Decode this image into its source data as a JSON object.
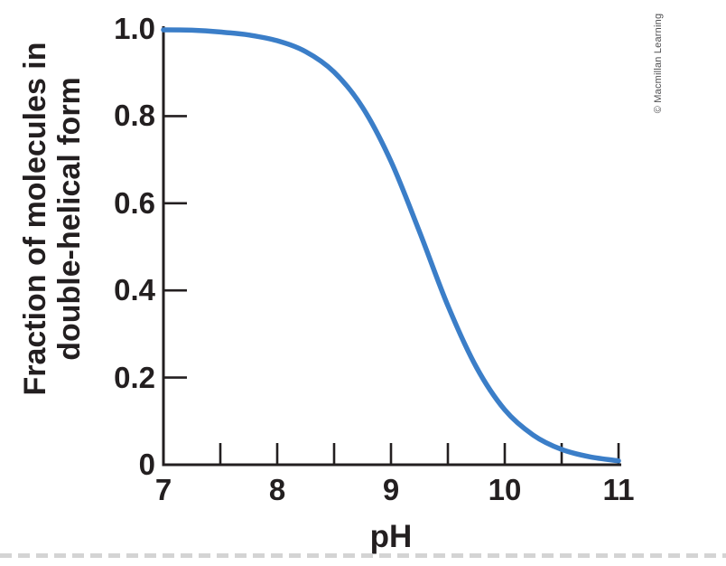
{
  "figure": {
    "credit": "© Macmillan Learning",
    "background": "#ffffff"
  },
  "colors": {
    "axis": "#231f20",
    "text": "#231f20",
    "curve": "#3b7ec8",
    "credit_text": "#4f4f51",
    "tear_dash": "#c6c6c6"
  },
  "chart_data": {
    "type": "line",
    "title": "",
    "xlabel": "pH",
    "ylabel": "Fraction of molecules in double-helical form",
    "ylabel_lines": [
      "Fraction of molecules in",
      "double-helical form"
    ],
    "xlim": [
      7,
      11
    ],
    "ylim": [
      0,
      1.0
    ],
    "grid": false,
    "legend": false,
    "x_tick_labels": [
      "7",
      "8",
      "9",
      "10",
      "11"
    ],
    "x_tick_label_values": [
      7,
      8,
      9,
      10,
      11
    ],
    "x_tick_marks": [
      7.5,
      8,
      8.5,
      9,
      9.5,
      10,
      10.5,
      11
    ],
    "y_tick_labels": [
      "1.0",
      "0.8",
      "0.6",
      "0.4",
      "0.2",
      "0"
    ],
    "y_tick_label_values": [
      1.0,
      0.8,
      0.6,
      0.4,
      0.2,
      0
    ],
    "y_tick_marks": [
      0.2,
      0.4,
      0.6,
      0.8,
      1.0
    ],
    "series": [
      {
        "name": "fraction-double-helical",
        "color": "#3b7ec8",
        "points": [
          [
            7.0,
            0.998
          ],
          [
            7.25,
            0.997
          ],
          [
            7.5,
            0.993
          ],
          [
            7.75,
            0.986
          ],
          [
            8.0,
            0.973
          ],
          [
            8.25,
            0.948
          ],
          [
            8.5,
            0.901
          ],
          [
            8.75,
            0.82
          ],
          [
            9.0,
            0.696
          ],
          [
            9.25,
            0.535
          ],
          [
            9.5,
            0.365
          ],
          [
            9.75,
            0.224
          ],
          [
            10.0,
            0.126
          ],
          [
            10.25,
            0.068
          ],
          [
            10.5,
            0.035
          ],
          [
            10.75,
            0.018
          ],
          [
            11.0,
            0.009
          ]
        ]
      }
    ]
  }
}
